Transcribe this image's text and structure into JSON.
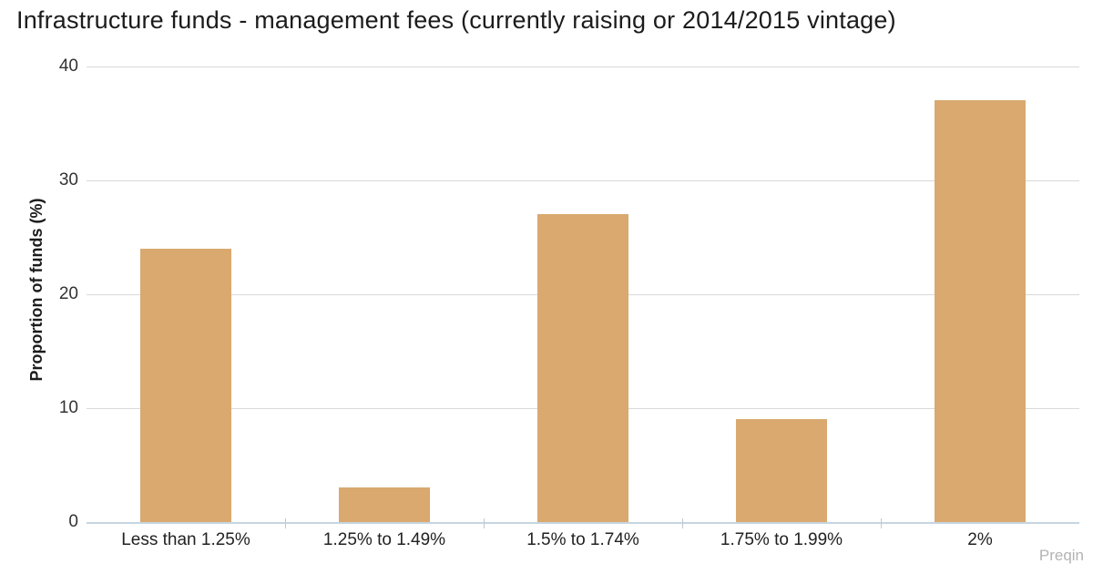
{
  "chart_data": {
    "type": "bar",
    "title": "Infrastructure funds - management fees (currently raising or 2014/2015 vintage)",
    "categories": [
      "Less than 1.25%",
      "1.25% to 1.49%",
      "1.5% to 1.74%",
      "1.75% to 1.99%",
      "2%"
    ],
    "values": [
      24,
      3,
      27,
      9,
      37
    ],
    "xlabel": "",
    "ylabel": "Proportion of funds (%)",
    "ylim": [
      0,
      40
    ],
    "yticks": [
      0,
      10,
      20,
      30,
      40
    ],
    "grid": true,
    "legend": "none",
    "bar_color": "#D9A96F",
    "gridline_color": "#d9d9d9",
    "axis_line_color": "#c6d5e1",
    "axis_tick_color": "#c0c8d0"
  },
  "footer": {
    "attribution": "Preqin"
  }
}
